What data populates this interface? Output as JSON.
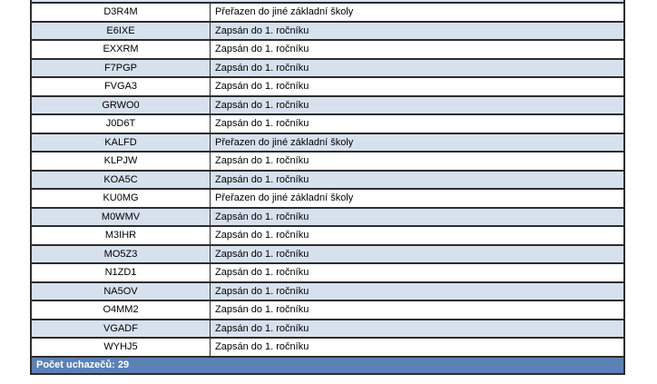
{
  "table": {
    "columns": [
      "applicant_code",
      "enrollment_result"
    ],
    "clipped_row_at_top": true,
    "rows": [
      {
        "code": "D3R4M",
        "status": "Přeřazen do jiné základní školy"
      },
      {
        "code": "E6IXE",
        "status": "Zapsán do 1. ročníku"
      },
      {
        "code": "EXXRM",
        "status": "Zapsán do 1. ročníku"
      },
      {
        "code": "F7PGP",
        "status": "Zapsán do 1. ročníku"
      },
      {
        "code": "FVGA3",
        "status": "Zapsán do 1. ročníku"
      },
      {
        "code": "GRWO0",
        "status": "Zapsán do 1. ročníku"
      },
      {
        "code": "J0D6T",
        "status": "Zapsán do 1. ročníku"
      },
      {
        "code": "KALFD",
        "status": "Přeřazen do jiné základní školy"
      },
      {
        "code": "KLPJW",
        "status": "Zapsán do 1. ročníku"
      },
      {
        "code": "KOA5C",
        "status": "Zapsán do 1. ročníku"
      },
      {
        "code": "KU0MG",
        "status": "Přeřazen do jiné základní školy"
      },
      {
        "code": "M0WMV",
        "status": "Zapsán do 1. ročníku"
      },
      {
        "code": "M3IHR",
        "status": "Zapsán do 1. ročníku"
      },
      {
        "code": "MO5Z3",
        "status": "Zapsán do 1. ročníku"
      },
      {
        "code": "N1ZD1",
        "status": "Zapsán do 1. ročníku"
      },
      {
        "code": "NA5OV",
        "status": "Zapsán do 1. ročníku"
      },
      {
        "code": "O4MM2",
        "status": "Zapsán do 1. ročníku"
      },
      {
        "code": "VGADF",
        "status": "Zapsán do 1. ročníku"
      },
      {
        "code": "WYHJ5",
        "status": "Zapsán do 1. ročníku"
      }
    ],
    "footer": {
      "label": "Počet uchazečů: 29"
    },
    "colors": {
      "page_bg": "#ffffff",
      "band": "#d7e1ee",
      "footer_bg": "#5b81b5",
      "footer_text": "#ffffff",
      "border": "#2d2d2d",
      "text": "#000000"
    }
  }
}
